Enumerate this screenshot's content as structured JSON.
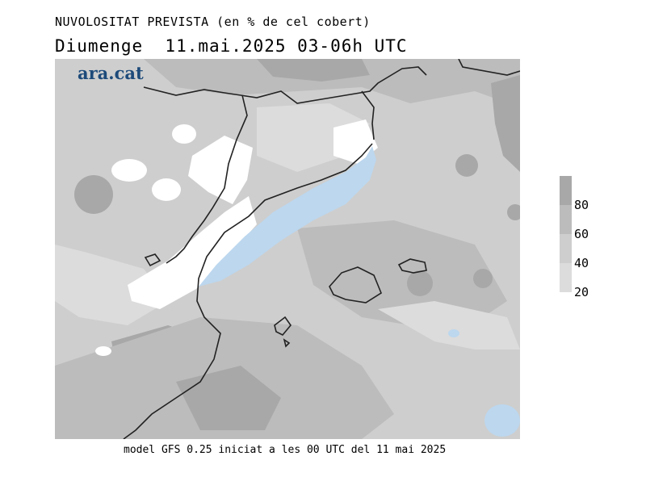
{
  "title": "NUVOLOSITAT PREVISTA (en % de cel cobert)",
  "subtitle": "Diumenge  11.mai.2025 03-06h UTC",
  "logo": "ara.cat",
  "footer": "model GFS 0.25 iniciat a les 00 UTC del 11 mai 2025",
  "legend": {
    "ticks": [
      "80",
      "60",
      "40",
      "20"
    ],
    "colors": [
      "#a8a8a8",
      "#bcbcbc",
      "#cecece",
      "#dcdcdc",
      "#ececec"
    ]
  },
  "colors": {
    "very_low": "#ffffff",
    "low": "#dcdcdc",
    "mid": "#cecece",
    "high": "#bcbcbc",
    "very_high": "#a8a8a8",
    "sea_clear": "#bcd7ee",
    "border": "#222222"
  }
}
